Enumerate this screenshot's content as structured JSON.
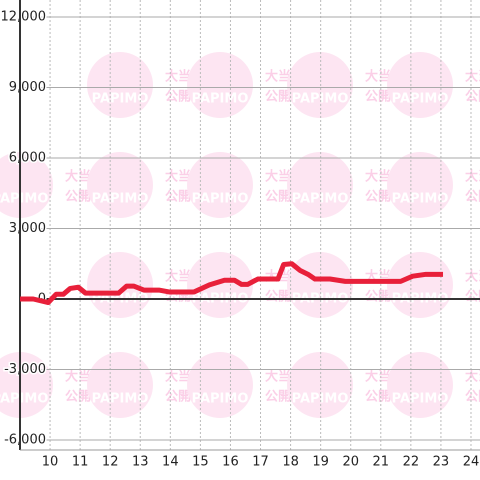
{
  "chart_data": {
    "type": "line",
    "x": [
      9,
      9.44,
      9.94,
      10.2,
      10.44,
      10.67,
      10.94,
      11.18,
      12.28,
      12.55,
      12.78,
      13.12,
      13.62,
      13.96,
      14.79,
      15.3,
      15.8,
      16.13,
      16.37,
      16.57,
      16.91,
      17.58,
      17.77,
      18.04,
      18.31,
      18.58,
      18.81,
      19.31,
      19.82,
      21.66,
      22.06,
      22.5,
      23.07
    ],
    "series": [
      {
        "color": "#e8203a",
        "values": [
          0,
          0,
          -150,
          200,
          200,
          450,
          500,
          250,
          250,
          550,
          550,
          380,
          380,
          300,
          300,
          600,
          800,
          800,
          620,
          620,
          850,
          850,
          1470,
          1500,
          1220,
          1050,
          850,
          850,
          750,
          750,
          970,
          1050,
          1050
        ]
      }
    ],
    "xlim": [
      9,
      24.3
    ],
    "xticks": [
      10,
      11,
      12,
      13,
      14,
      15,
      16,
      17,
      18,
      19,
      20,
      21,
      22,
      23,
      24
    ],
    "ylim": [
      -6000,
      12000
    ],
    "yticks": [
      {
        "value": -6000,
        "label": "-6,000"
      },
      {
        "value": -3000,
        "label": "-3,000"
      },
      0,
      {
        "value": 3000,
        "label": "3,000"
      },
      {
        "value": 6000,
        "label": "6,000"
      },
      {
        "value": 9000,
        "label": "9,000"
      },
      {
        "value": 12000,
        "label": "12,000"
      }
    ],
    "grid": true
  },
  "watermark": {
    "logo": "PAPIMO",
    "line1": "大当り情報",
    "line2": "公開サービス"
  }
}
